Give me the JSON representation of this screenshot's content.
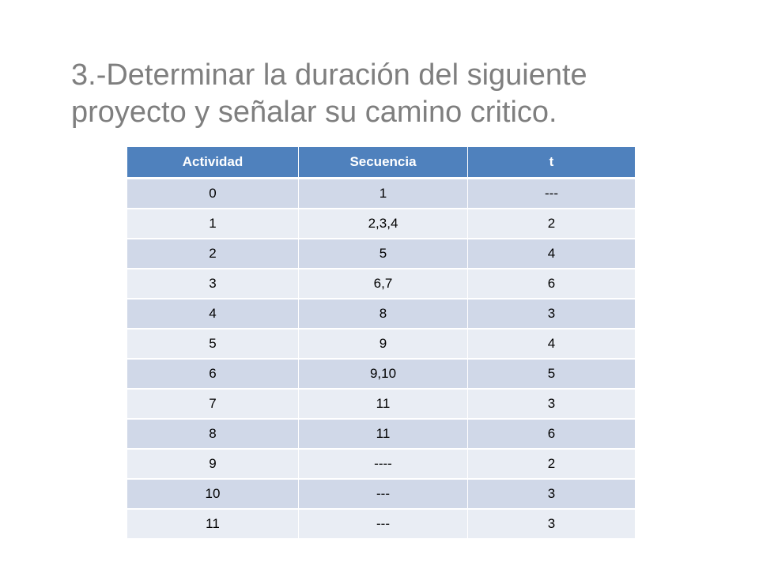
{
  "title": {
    "line1": "3.-Determinar la duración del siguiente",
    "line2": "proyecto y señalar su camino critico."
  },
  "table": {
    "headers": [
      "Actividad",
      "Secuencia",
      "t"
    ],
    "rows": [
      [
        "0",
        "1",
        "---"
      ],
      [
        "1",
        "2,3,4",
        "2"
      ],
      [
        "2",
        "5",
        "4"
      ],
      [
        "3",
        "6,7",
        "6"
      ],
      [
        "4",
        "8",
        "3"
      ],
      [
        "5",
        "9",
        "4"
      ],
      [
        "6",
        "9,10",
        "5"
      ],
      [
        "7",
        "11",
        "3"
      ],
      [
        "8",
        "11",
        "6"
      ],
      [
        "9",
        "----",
        "2"
      ],
      [
        "10",
        "---",
        "3"
      ],
      [
        "11",
        "---",
        "3"
      ]
    ]
  },
  "colors": {
    "header_bg": "#4f81bd",
    "row_odd_bg": "#d0d8e8",
    "row_even_bg": "#e9edf4",
    "title_text": "#7f7f7f"
  }
}
